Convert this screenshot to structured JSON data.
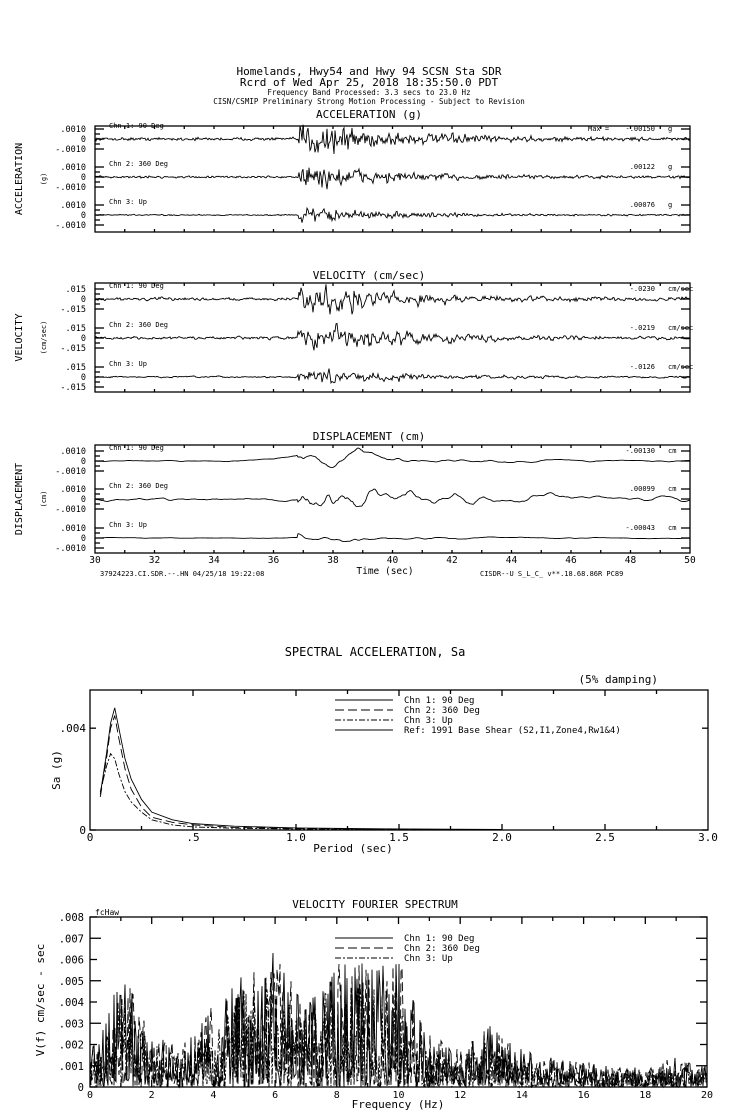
{
  "header": {
    "line1": "Homelands, Hwy54 and Hwy 94    SCSN Sta SDR",
    "line2": "Rcrd of Wed Apr 25, 2018 18:35:50.0 PDT",
    "line3": "Frequency Band Processed: 3.3 secs to 23.0 Hz",
    "line4": "CISN/CSMIP Preliminary Strong Motion Processing - Subject to Revision"
  },
  "chart_data": [
    {
      "type": "line",
      "title": "ACCELERATION (g)",
      "ylabel": "ACCELERATION",
      "yunit": "(g)",
      "yticks": [
        ".0010",
        "0",
        "-.0010"
      ],
      "xlim": [
        30,
        50
      ],
      "channels": [
        {
          "name": "Chn 1: 90 Deg",
          "max_label": "Max =",
          "max": "-.00150",
          "unit": "g"
        },
        {
          "name": "Chn 2: 360 Deg",
          "max": ".00122",
          "unit": "g"
        },
        {
          "name": "Chn 3: Up",
          "max": ".00076",
          "unit": "g"
        }
      ]
    },
    {
      "type": "line",
      "title": "VELOCITY (cm/sec)",
      "ylabel": "VELOCITY",
      "yunit": "(cm/sec)",
      "yticks": [
        ".015",
        "0",
        "-.015"
      ],
      "xlim": [
        30,
        50
      ],
      "channels": [
        {
          "name": "Chn 1: 90 Deg",
          "max": "-.0230",
          "unit": "cm/sec"
        },
        {
          "name": "Chn 2: 360 Deg",
          "max": "-.0219",
          "unit": "cm/sec"
        },
        {
          "name": "Chn 3: Up",
          "max": "-.0126",
          "unit": "cm/sec"
        }
      ]
    },
    {
      "type": "line",
      "title": "DISPLACEMENT (cm)",
      "ylabel": "DISPLACEMENT",
      "yunit": "(cm)",
      "yticks": [
        ".0010",
        "0",
        "-.0010"
      ],
      "xlim": [
        30,
        50
      ],
      "xlabel": "Time (sec)",
      "xticks": [
        "30",
        "32",
        "34",
        "36",
        "38",
        "40",
        "42",
        "44",
        "46",
        "48",
        "50"
      ],
      "footer_left": "37924223.CI.SDR.--.HN 04/25/18 19:22:08",
      "footer_right": "CISDR--U  S_L_C_  v**.18.68.86R PC89",
      "channels": [
        {
          "name": "Chn 1: 90 Deg",
          "max": "-.00130",
          "unit": "cm"
        },
        {
          "name": "Chn 2: 360 Deg",
          "max": ".00099",
          "unit": "cm"
        },
        {
          "name": "Chn 3: Up",
          "max": "-.00043",
          "unit": "cm"
        }
      ]
    },
    {
      "type": "line",
      "title": "SPECTRAL ACCELERATION, Sa",
      "annotation": "(5% damping)",
      "xlabel": "Period (sec)",
      "ylabel": "Sa (g)",
      "xlim": [
        0,
        3.0
      ],
      "ylim": [
        0,
        0.0055
      ],
      "xticks": [
        "0",
        ".5",
        "1.0",
        "1.5",
        "2.0",
        "2.5",
        "3.0"
      ],
      "yticks": [
        {
          "v": 0,
          "label": "0"
        },
        {
          "v": 0.004,
          "label": ".004"
        }
      ],
      "legend": [
        "Chn 1: 90 Deg",
        "Chn 2: 360 Deg",
        "Chn 3: Up",
        "Ref: 1991 Base Shear (S2,I1,Zone4,Rw1&4)"
      ],
      "x": [
        0.05,
        0.08,
        0.1,
        0.12,
        0.14,
        0.17,
        0.2,
        0.25,
        0.3,
        0.4,
        0.5,
        0.7,
        1.0,
        1.5,
        2.0
      ],
      "series": [
        {
          "name": "Chn 1: 90 Deg",
          "values": [
            0.0014,
            0.003,
            0.0042,
            0.0048,
            0.004,
            0.0028,
            0.002,
            0.0012,
            0.0007,
            0.0004,
            0.00025,
            0.00015,
            8e-05,
            4e-05,
            2e-05
          ]
        },
        {
          "name": "Chn 2: 360 Deg",
          "values": [
            0.0013,
            0.0028,
            0.004,
            0.0045,
            0.0036,
            0.0024,
            0.0016,
            0.0009,
            0.0005,
            0.0003,
            0.0002,
            0.0001,
            6e-05,
            3e-05,
            1e-05
          ]
        },
        {
          "name": "Chn 3: Up",
          "values": [
            0.0015,
            0.0025,
            0.003,
            0.0028,
            0.0022,
            0.0015,
            0.0011,
            0.0007,
            0.0004,
            0.0002,
            0.00012,
            7e-05,
            4e-05,
            2e-05,
            1e-05
          ]
        }
      ]
    },
    {
      "type": "line",
      "title": "VELOCITY FOURIER SPECTRUM",
      "corner_label": "fcHaw",
      "xlabel": "Frequency (Hz)",
      "ylabel": "V(f)   cm/sec - sec",
      "xlim": [
        0,
        20
      ],
      "ylim": [
        0,
        0.008
      ],
      "xticks": [
        "0",
        "2",
        "4",
        "6",
        "8",
        "10",
        "12",
        "14",
        "16",
        "18",
        "20"
      ],
      "yticks": [
        "0",
        ".001",
        ".002",
        ".003",
        ".004",
        ".005",
        ".006",
        ".007",
        ".008"
      ],
      "legend": [
        "Chn 1: 90 Deg",
        "Chn 2: 360 Deg",
        "Chn 3: Up"
      ],
      "envelope_freq": [
        0,
        0.5,
        1,
        1.5,
        2,
        3,
        4,
        5,
        6,
        7,
        8,
        9,
        10,
        11,
        12,
        13,
        14,
        15,
        16,
        17,
        18,
        19,
        20
      ],
      "envelope_peak": [
        0.002,
        0.003,
        0.0058,
        0.004,
        0.0025,
        0.002,
        0.004,
        0.0058,
        0.0064,
        0.004,
        0.0058,
        0.0062,
        0.006,
        0.0025,
        0.0018,
        0.003,
        0.0018,
        0.0014,
        0.0012,
        0.001,
        0.0009,
        0.0015,
        0.001
      ]
    }
  ]
}
